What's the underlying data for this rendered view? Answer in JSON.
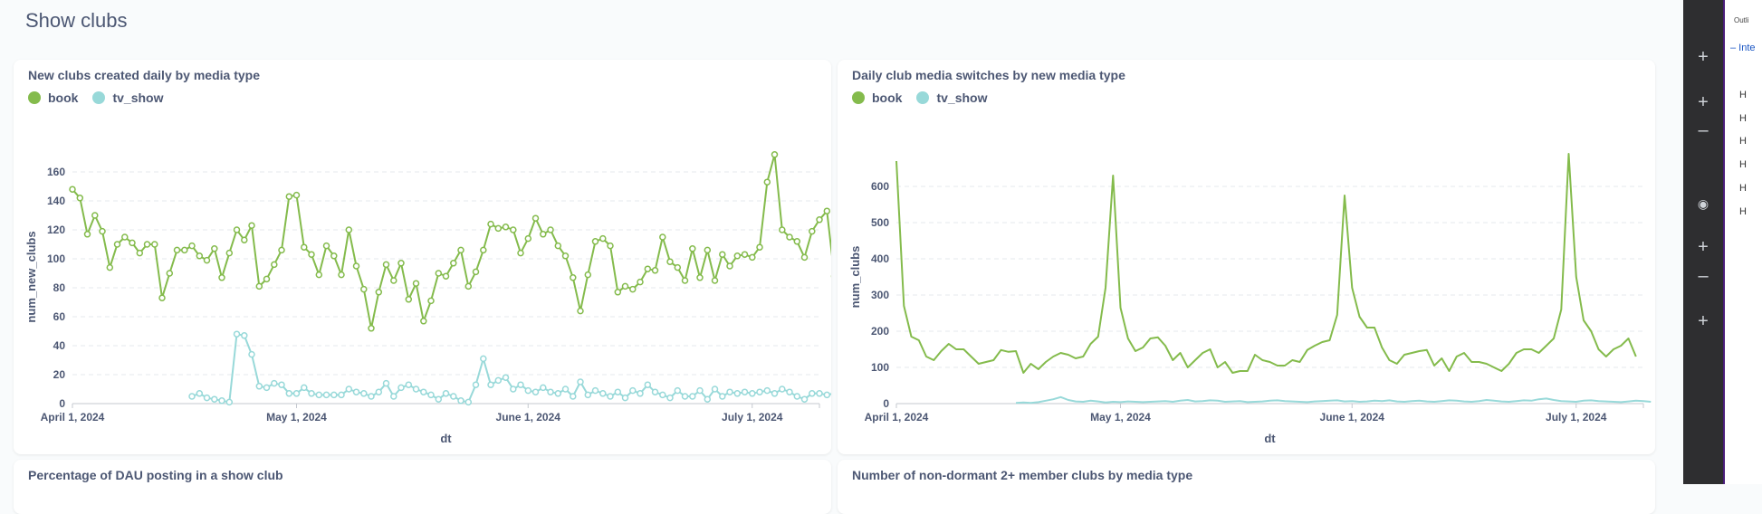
{
  "page": {
    "title": "Show clubs"
  },
  "colors": {
    "book": "#84bb4c",
    "tv_show": "#98d9d9",
    "grid": "#e6e9ec",
    "axis": "#c4c8cf"
  },
  "legend": [
    {
      "label": "book",
      "color": "#84bb4c"
    },
    {
      "label": "tv_show",
      "color": "#98d9d9"
    }
  ],
  "cards": {
    "bottom_left_title": "Percentage of DAU posting in a show club",
    "bottom_right_title": "Number of non-dormant 2+ member clubs by media type"
  },
  "side_panel": {
    "outline_label": "Outli",
    "section_label": "– Inte",
    "h_items": [
      "H",
      "H",
      "H",
      "H",
      "H",
      "H"
    ],
    "icons": [
      "plus-icon",
      "plus-icon",
      "minus-icon",
      "eye-icon",
      "plus-icon",
      "minus-icon",
      "plus-icon"
    ]
  },
  "chart_data": [
    {
      "type": "line",
      "title": "New clubs created daily by media type",
      "xlabel": "dt",
      "ylabel": "num_new_clubs",
      "x_start": "2024-04-01",
      "x_ticks": [
        {
          "label": "April 1, 2024",
          "day": 0
        },
        {
          "label": "May 1, 2024",
          "day": 30
        },
        {
          "label": "June 1, 2024",
          "day": 61
        },
        {
          "label": "July 1, 2024",
          "day": 91
        }
      ],
      "xlim_days": [
        0,
        100
      ],
      "ylim": [
        0,
        175
      ],
      "yticks": [
        0,
        20,
        40,
        60,
        80,
        100,
        120,
        140,
        160
      ],
      "markers": true,
      "series": [
        {
          "name": "book",
          "color": "#84bb4c",
          "start_day": 0,
          "values": [
            148,
            142,
            117,
            130,
            119,
            94,
            110,
            115,
            111,
            104,
            110,
            110,
            73,
            90,
            106,
            106,
            109,
            102,
            99,
            107,
            87,
            104,
            120,
            113,
            123,
            81,
            86,
            96,
            106,
            143,
            144,
            108,
            103,
            89,
            109,
            102,
            89,
            120,
            95,
            79,
            52,
            77,
            96,
            85,
            97,
            72,
            83,
            57,
            71,
            90,
            88,
            97,
            106,
            81,
            91,
            106,
            124,
            121,
            122,
            120,
            104,
            114,
            128,
            117,
            120,
            109,
            102,
            87,
            64,
            89,
            112,
            114,
            109,
            77,
            81,
            79,
            84,
            93,
            92,
            115,
            98,
            94,
            85,
            107,
            87,
            106,
            85,
            103,
            95,
            102,
            103,
            101,
            108,
            153,
            172,
            120,
            115,
            112,
            101,
            119,
            127,
            133,
            88
          ]
        },
        {
          "name": "tv_show",
          "color": "#98d9d9",
          "start_day": 16,
          "values": [
            5,
            7,
            4,
            3,
            2,
            1,
            48,
            47,
            34,
            12,
            11,
            14,
            13,
            7,
            7,
            11,
            7,
            6,
            6,
            6,
            6,
            10,
            8,
            7,
            5,
            8,
            14,
            5,
            11,
            13,
            10,
            8,
            6,
            3,
            7,
            5,
            2,
            1,
            13,
            31,
            13,
            16,
            18,
            10,
            13,
            9,
            8,
            11,
            8,
            7,
            10,
            5,
            15,
            6,
            9,
            7,
            5,
            8,
            4,
            9,
            7,
            13,
            8,
            6,
            4,
            9,
            5,
            5,
            9,
            3,
            10,
            5,
            8,
            7,
            8,
            7,
            8,
            9,
            7,
            10,
            8,
            5,
            3,
            7,
            7,
            6,
            7,
            3,
            6,
            7,
            6,
            9,
            5
          ]
        }
      ]
    },
    {
      "type": "line",
      "title": "Daily club media switches by new media type",
      "xlabel": "dt",
      "ylabel": "num_clubs",
      "x_start": "2024-04-01",
      "x_ticks": [
        {
          "label": "April 1, 2024",
          "day": 0
        },
        {
          "label": "May 1, 2024",
          "day": 30
        },
        {
          "label": "June 1, 2024",
          "day": 61
        },
        {
          "label": "July 1, 2024",
          "day": 91
        }
      ],
      "xlim_days": [
        0,
        100
      ],
      "ylim": [
        0,
        700
      ],
      "yticks": [
        0,
        100,
        200,
        300,
        400,
        500,
        600
      ],
      "markers": false,
      "series": [
        {
          "name": "book",
          "color": "#84bb4c",
          "start_day": 0,
          "values": [
            670,
            270,
            185,
            175,
            130,
            120,
            145,
            165,
            150,
            150,
            130,
            110,
            115,
            120,
            148,
            143,
            145,
            85,
            110,
            95,
            115,
            130,
            140,
            135,
            125,
            130,
            165,
            185,
            320,
            630,
            265,
            180,
            145,
            155,
            180,
            183,
            160,
            120,
            140,
            100,
            120,
            140,
            150,
            100,
            115,
            85,
            90,
            90,
            135,
            120,
            115,
            105,
            105,
            120,
            115,
            148,
            160,
            170,
            175,
            245,
            575,
            320,
            240,
            210,
            210,
            155,
            120,
            110,
            135,
            140,
            145,
            148,
            105,
            125,
            90,
            130,
            140,
            115,
            115,
            110,
            100,
            90,
            110,
            140,
            150,
            150,
            140,
            160,
            180,
            260,
            690,
            350,
            230,
            200,
            150,
            130,
            150,
            160,
            180,
            130
          ]
        },
        {
          "name": "tv_show",
          "color": "#98d9d9",
          "start_day": 16,
          "values": [
            2,
            3,
            2,
            4,
            8,
            12,
            18,
            10,
            6,
            5,
            8,
            6,
            3,
            5,
            4,
            6,
            5,
            4,
            5,
            6,
            7,
            5,
            8,
            10,
            6,
            7,
            9,
            8,
            5,
            6,
            7,
            4,
            5,
            6,
            8,
            9,
            7,
            6,
            5,
            4,
            6,
            7,
            8,
            9,
            6,
            7,
            5,
            6,
            8,
            7,
            9,
            6,
            5,
            7,
            8,
            6,
            5,
            7,
            9,
            8,
            6,
            5,
            7,
            10,
            8,
            6,
            5,
            7,
            9,
            8,
            12,
            14,
            10,
            7,
            6,
            5,
            8,
            9,
            7,
            6,
            5,
            4,
            6,
            8,
            7,
            5
          ]
        }
      ]
    }
  ]
}
